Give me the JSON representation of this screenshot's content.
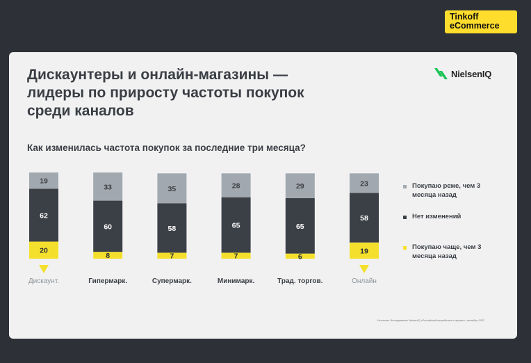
{
  "brand": {
    "line1": "Tinkoff",
    "line2": "eCommerce"
  },
  "logo": {
    "text": "NielsenIQ"
  },
  "title": {
    "line1": "Дискаунтеры и онлайн-магазины —",
    "line2": "лидеры по приросту частоты покупок",
    "line3": "среди каналов"
  },
  "source": "Источник: Исследование NielsenIQ «Российский потребитель и кризис», сентябрь 2022",
  "colors": {
    "less": "#a2a8af",
    "same": "#3b4047",
    "more": "#f4e02c",
    "marker": "#f4e02c",
    "marker_label": "#8e949b",
    "label": "#3a3e44"
  },
  "chart_data": {
    "type": "bar",
    "stacked": true,
    "title": "Как изменилась частота покупок за последние три месяца?",
    "categories": [
      "Дискаунт.",
      "Гипермарк.",
      "Супермарк.",
      "Минимарк.",
      "Трад. торгов.",
      "Онлайн"
    ],
    "highlighted": [
      0,
      5
    ],
    "series": [
      {
        "name": "Покупаю чаще, чем 3\nмесяца назад",
        "key": "more",
        "values": [
          20,
          8,
          7,
          7,
          6,
          19
        ]
      },
      {
        "name": "Нет изменений",
        "key": "same",
        "values": [
          62,
          60,
          58,
          65,
          65,
          58
        ]
      },
      {
        "name": "Покупаю реже, чем 3\nмесяца назад",
        "key": "less",
        "values": [
          19,
          33,
          35,
          28,
          29,
          23
        ]
      }
    ],
    "legend": [
      {
        "label": "Покупаю реже, чем 3\nмесяца назад",
        "key": "less"
      },
      {
        "label": "Нет изменений",
        "key": "same"
      },
      {
        "label": "Покупаю чаще, чем 3\nмесяца назад",
        "key": "more"
      }
    ],
    "legend_position": "right",
    "grid": false
  }
}
